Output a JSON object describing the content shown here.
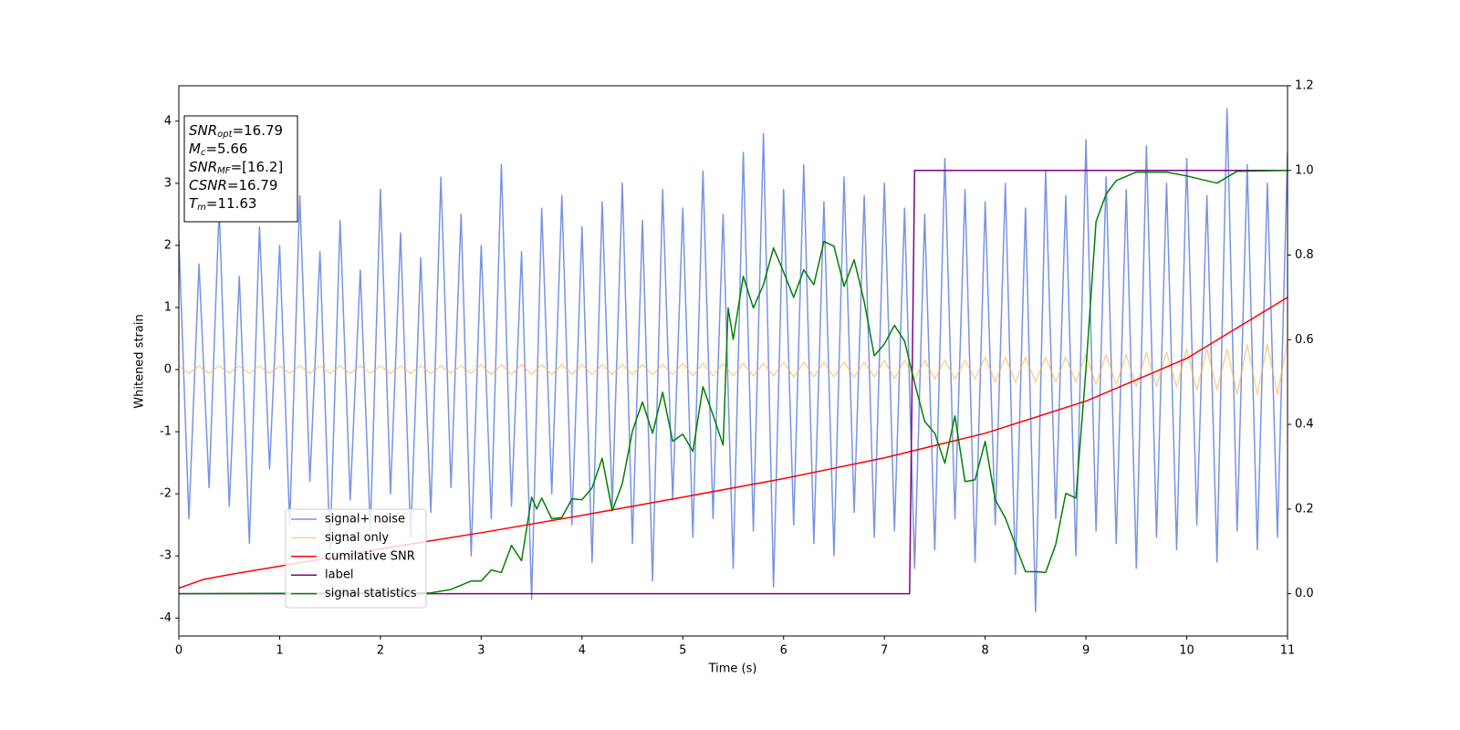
{
  "chart_data": {
    "type": "line",
    "xlabel": "Time (s)",
    "ylabel": "Whitened strain",
    "xlim": [
      0,
      11
    ],
    "xticks": [
      0,
      1,
      2,
      3,
      4,
      5,
      6,
      7,
      8,
      9,
      10,
      11
    ],
    "ylim": [
      -4.29,
      4.57
    ],
    "yticks": [
      -4,
      -3,
      -2,
      -1,
      0,
      1,
      2,
      3,
      4
    ],
    "y2lim": [
      -0.1,
      1.2
    ],
    "y2ticks": [
      {
        "value": 0,
        "label": "0.0"
      },
      {
        "value": 0.2,
        "label": "0.2"
      },
      {
        "value": 0.4,
        "label": "0.4"
      },
      {
        "value": 0.6,
        "label": "0.6"
      },
      {
        "value": 0.8,
        "label": "0.8"
      },
      {
        "value": 1,
        "label": "1.0"
      },
      {
        "value": 1.2,
        "label": "1.2"
      }
    ],
    "legend": "lower left",
    "annotations": [
      {
        "text": "SNR",
        "sub": "opt",
        "value": "=16.79"
      },
      {
        "text": "M",
        "sub": "c",
        "value": "=5.66"
      },
      {
        "text": "SNR",
        "sub": "MF",
        "value": "=[16.2]"
      },
      {
        "text": "CSNR",
        "value": "=16.79"
      },
      {
        "text": "T",
        "sub": "m",
        "value": "=11.63"
      }
    ],
    "x": [
      0,
      0.1,
      0.2,
      0.3,
      0.4,
      0.5,
      0.6,
      0.7,
      0.8,
      0.9,
      1,
      1.1,
      1.2,
      1.3,
      1.4,
      1.5,
      1.6,
      1.7,
      1.8,
      1.9,
      2,
      2.1,
      2.2,
      2.3,
      2.4,
      2.5,
      2.6,
      2.7,
      2.8,
      2.9,
      3,
      3.1,
      3.2,
      3.3,
      3.4,
      3.5,
      3.6,
      3.7,
      3.8,
      3.9,
      4,
      4.1,
      4.2,
      4.3,
      4.4,
      4.5,
      4.6,
      4.7,
      4.8,
      4.9,
      5,
      5.1,
      5.2,
      5.3,
      5.4,
      5.5,
      5.6,
      5.7,
      5.8,
      5.9,
      6,
      6.1,
      6.2,
      6.3,
      6.4,
      6.5,
      6.6,
      6.7,
      6.8,
      6.9,
      7,
      7.1,
      7.2,
      7.3,
      7.4,
      7.5,
      7.6,
      7.7,
      7.8,
      7.9,
      8,
      8.1,
      8.2,
      8.3,
      8.4,
      8.5,
      8.6,
      8.7,
      8.8,
      8.9,
      9,
      9.1,
      9.2,
      9.3,
      9.4,
      9.5,
      9.6,
      9.7,
      9.8,
      9.9,
      10,
      10.1,
      10.2,
      10.3,
      10.4,
      10.5,
      10.6,
      10.7,
      10.8,
      10.9,
      11
    ],
    "series": [
      {
        "name": "signal+ noise",
        "color": "#7893e6",
        "values": [
          2.1,
          -2.4,
          1.7,
          -1.9,
          2.6,
          -2.2,
          1.5,
          -2.8,
          2.3,
          -1.6,
          2.0,
          -2.5,
          2.8,
          -1.8,
          1.9,
          -2.9,
          2.4,
          -2.1,
          1.6,
          -2.6,
          2.9,
          -2.0,
          2.2,
          -2.7,
          1.8,
          -2.3,
          3.1,
          -1.9,
          2.5,
          -3.0,
          2.0,
          -2.4,
          3.3,
          -2.2,
          1.9,
          -3.7,
          2.6,
          -2.0,
          2.8,
          -2.5,
          2.3,
          -3.1,
          2.7,
          -2.2,
          3.0,
          -2.8,
          2.4,
          -3.4,
          2.9,
          -2.1,
          2.6,
          -2.7,
          3.2,
          -2.4,
          2.5,
          -3.2,
          3.5,
          -2.6,
          3.8,
          -3.5,
          2.9,
          -2.5,
          3.3,
          -2.8,
          2.7,
          -3.0,
          3.1,
          -2.3,
          2.8,
          -2.7,
          3.0,
          -2.6,
          2.6,
          -3.2,
          2.5,
          -2.9,
          3.4,
          -2.4,
          2.9,
          -3.1,
          2.7,
          -2.5,
          3.0,
          -3.3,
          2.6,
          -3.9,
          3.2,
          -2.4,
          2.8,
          -3.0,
          3.7,
          -2.6,
          3.1,
          -2.8,
          2.9,
          -3.2,
          3.6,
          -2.7,
          3.0,
          -2.9,
          3.4,
          -2.5,
          2.8,
          -3.1,
          4.2,
          -2.6,
          3.3,
          -2.9,
          3.0,
          -2.7,
          3.5
        ]
      },
      {
        "name": "signal only",
        "color": "#ffb347",
        "values": [
          0.06,
          -0.06,
          0.06,
          -0.06,
          0.06,
          -0.06,
          0.06,
          -0.06,
          0.06,
          -0.06,
          0.06,
          -0.06,
          0.06,
          -0.06,
          0.06,
          -0.06,
          0.06,
          -0.06,
          0.06,
          -0.06,
          0.06,
          -0.06,
          0.06,
          -0.06,
          0.06,
          -0.06,
          0.06,
          -0.06,
          0.06,
          -0.06,
          0.08,
          -0.08,
          0.08,
          -0.08,
          0.08,
          -0.08,
          0.08,
          -0.08,
          0.08,
          -0.08,
          0.08,
          -0.08,
          0.08,
          -0.08,
          0.08,
          -0.08,
          0.08,
          -0.08,
          0.08,
          -0.08,
          0.1,
          -0.1,
          0.1,
          -0.1,
          0.1,
          -0.1,
          0.1,
          -0.1,
          0.1,
          -0.1,
          0.12,
          -0.12,
          0.12,
          -0.12,
          0.12,
          -0.12,
          0.12,
          -0.12,
          0.12,
          -0.12,
          0.15,
          -0.15,
          0.15,
          -0.15,
          0.15,
          -0.15,
          0.15,
          -0.15,
          0.15,
          -0.15,
          0.2,
          -0.2,
          0.2,
          -0.2,
          0.2,
          -0.2,
          0.2,
          -0.2,
          0.2,
          -0.2,
          0.24,
          -0.24,
          0.24,
          -0.24,
          0.24,
          -0.28,
          0.28,
          -0.28,
          0.28,
          -0.28,
          0.33,
          -0.33,
          0.33,
          -0.33,
          0.33,
          -0.4,
          0.4,
          -0.4,
          0.4,
          -0.4,
          0.47
        ]
      },
      {
        "name": "cumilative SNR",
        "color": "#ff0000",
        "axis": "y2",
        "x": [
          0,
          0.25,
          0.5,
          1,
          2,
          3,
          4,
          5,
          6,
          7,
          8,
          9,
          10,
          11
        ],
        "values": [
          0.013,
          0.034,
          0.045,
          0.065,
          0.106,
          0.144,
          0.185,
          0.228,
          0.272,
          0.321,
          0.379,
          0.455,
          0.556,
          0.7
        ]
      },
      {
        "name": "label",
        "color": "#800080",
        "axis": "y2",
        "x": [
          0,
          7.25,
          7.3,
          11
        ],
        "values": [
          0,
          0,
          1,
          1
        ]
      },
      {
        "name": "signal statistics",
        "color": "#008000",
        "axis": "y2",
        "x": [
          0,
          2.5,
          2.7,
          2.9,
          3.0,
          3.1,
          3.2,
          3.3,
          3.4,
          3.5,
          3.55,
          3.6,
          3.7,
          3.8,
          3.9,
          4.0,
          4.1,
          4.2,
          4.3,
          4.4,
          4.5,
          4.6,
          4.7,
          4.8,
          4.9,
          5.0,
          5.1,
          5.2,
          5.3,
          5.4,
          5.45,
          5.5,
          5.6,
          5.7,
          5.8,
          5.9,
          6.0,
          6.1,
          6.2,
          6.3,
          6.4,
          6.5,
          6.6,
          6.7,
          6.8,
          6.9,
          7.0,
          7.1,
          7.2,
          7.3,
          7.4,
          7.5,
          7.6,
          7.7,
          7.8,
          7.9,
          8.0,
          8.1,
          8.2,
          8.4,
          8.5,
          8.6,
          8.7,
          8.8,
          8.9,
          9.0,
          9.1,
          9.2,
          9.3,
          9.5,
          9.8,
          10.0,
          10.3,
          10.5,
          11
        ],
        "values": [
          0,
          0.002,
          0.01,
          0.03,
          0.03,
          0.056,
          0.05,
          0.114,
          0.078,
          0.228,
          0.2,
          0.226,
          0.177,
          0.18,
          0.224,
          0.222,
          0.25,
          0.32,
          0.196,
          0.26,
          0.384,
          0.453,
          0.379,
          0.476,
          0.36,
          0.377,
          0.336,
          0.489,
          0.422,
          0.351,
          0.675,
          0.601,
          0.75,
          0.675,
          0.73,
          0.817,
          0.76,
          0.7,
          0.765,
          0.73,
          0.832,
          0.821,
          0.726,
          0.789,
          0.69,
          0.562,
          0.59,
          0.634,
          0.597,
          0.498,
          0.407,
          0.379,
          0.308,
          0.42,
          0.265,
          0.269,
          0.36,
          0.222,
          0.179,
          0.052,
          0.052,
          0.05,
          0.116,
          0.237,
          0.226,
          0.53,
          0.879,
          0.944,
          0.976,
          0.996,
          0.996,
          0.987,
          0.97,
          0.998,
          1.0
        ]
      }
    ]
  }
}
